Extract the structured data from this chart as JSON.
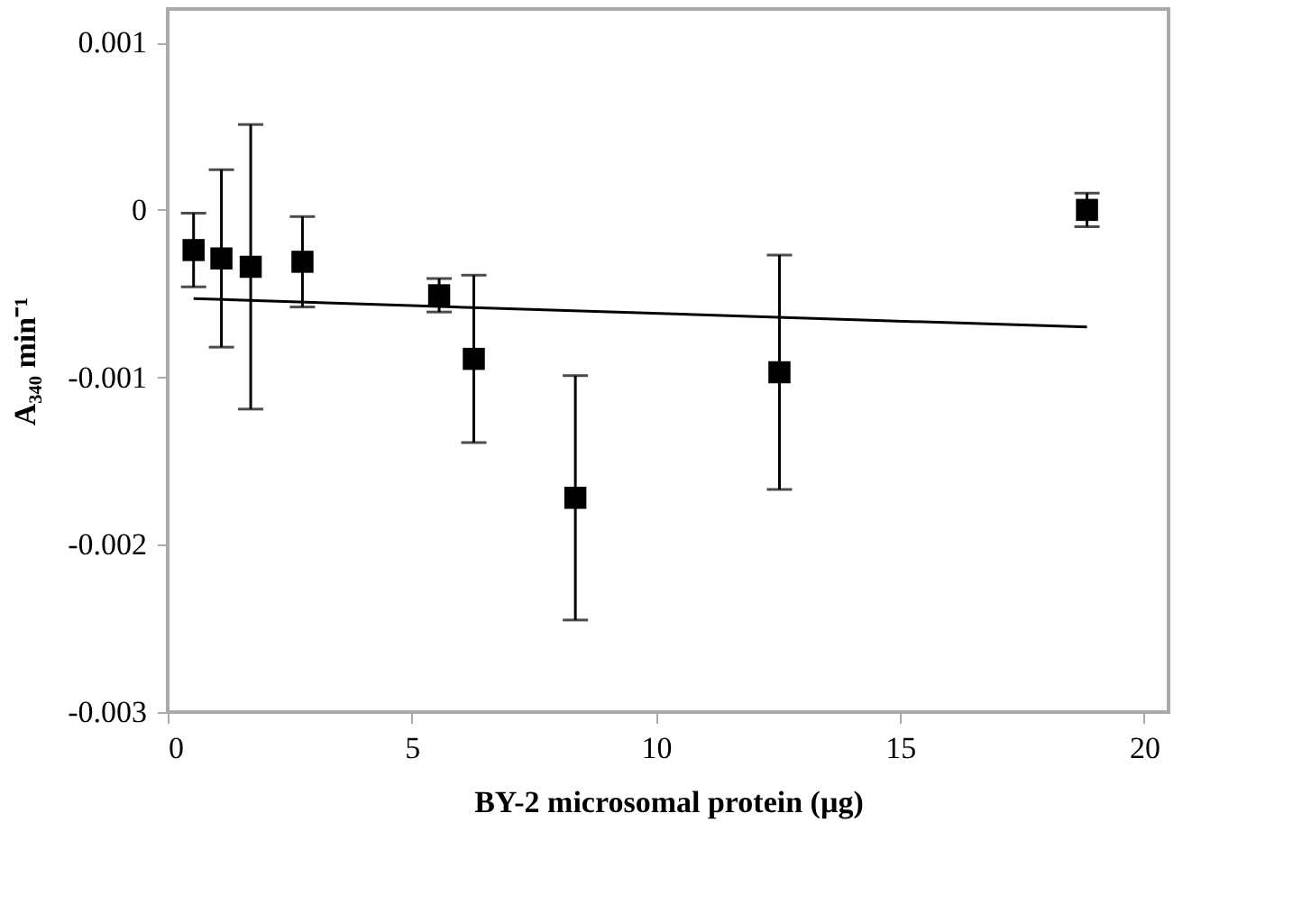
{
  "chart_data": {
    "type": "scatter",
    "xlabel": "BY-2 microsomal protein (µg)",
    "ylabel": "A₃₄₀ min⁻¹",
    "xlim": [
      0,
      20.5
    ],
    "xticks": [
      0,
      5,
      10,
      15,
      20
    ],
    "ylim": [
      -0.003,
      0.0012
    ],
    "yticks": [
      -0.003,
      -0.002,
      -0.001,
      0,
      0.001
    ],
    "grid": false,
    "series": [
      {
        "color": "#000000",
        "marker": "square",
        "x": [
          0.53,
          1.1,
          1.7,
          2.76,
          5.56,
          6.27,
          8.35,
          12.53,
          18.83
        ],
        "values": [
          -0.00024,
          -0.00029,
          -0.00034,
          -0.00031,
          -0.00051,
          -0.00089,
          -0.00172,
          -0.00097,
          0
        ],
        "errors": [
          0.00022,
          0.00053,
          0.00085,
          0.00027,
          0.0001,
          0.0005,
          0.00073,
          0.0007,
          0.0001
        ]
      },
      {
        "type": "line",
        "color": "#000000",
        "line_style": "solid",
        "marker": "none",
        "x": [
          0.53,
          18.83
        ],
        "values": [
          -0.00053,
          -0.0007
        ]
      }
    ]
  }
}
